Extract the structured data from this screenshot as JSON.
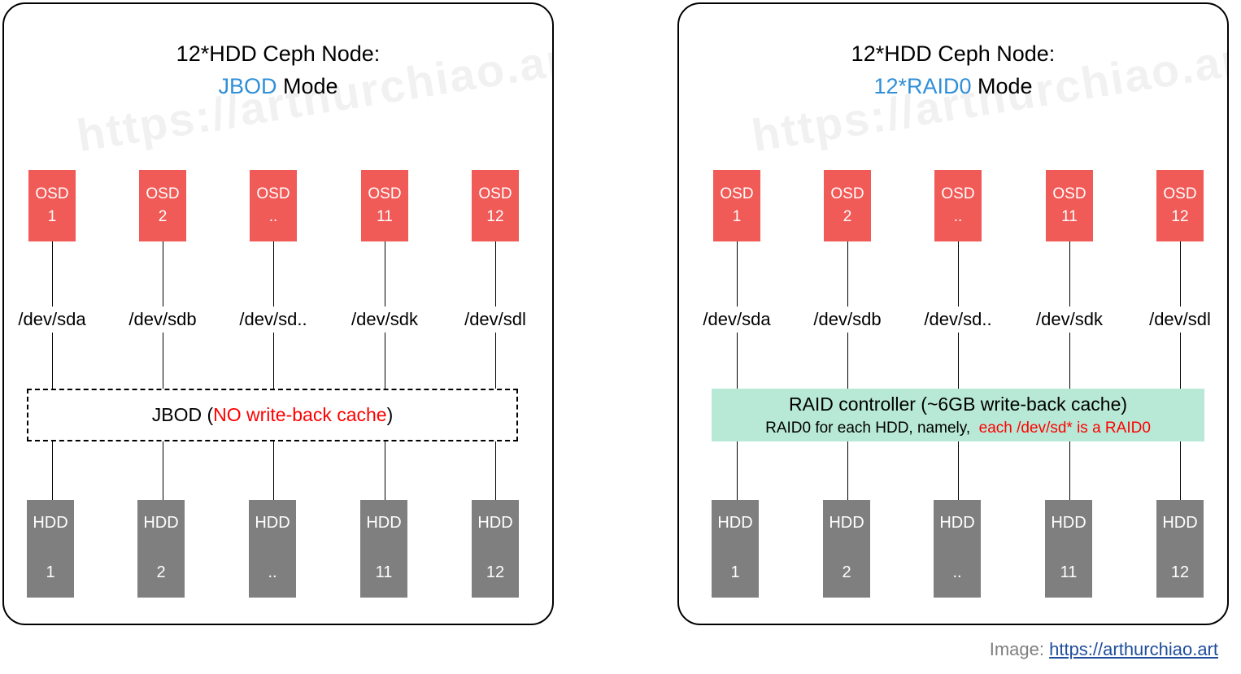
{
  "left": {
    "title_line1": "12*HDD Ceph Node:",
    "title_accent": "JBOD",
    "title_rest": " Mode",
    "watermark": "https://arthurchiao.art",
    "osds": [
      {
        "label": "OSD",
        "num": "1"
      },
      {
        "label": "OSD",
        "num": "2"
      },
      {
        "label": "OSD",
        "num": ".."
      },
      {
        "label": "OSD",
        "num": "11"
      },
      {
        "label": "OSD",
        "num": "12"
      }
    ],
    "devices": [
      "/dev/sda",
      "/dev/sdb",
      "/dev/sd..",
      "/dev/sdk",
      "/dev/sdl"
    ],
    "controller": {
      "prefix": "JBOD (",
      "highlight": "NO write-back cache",
      "suffix": ")"
    },
    "hdds": [
      {
        "label": "HDD",
        "num": "1"
      },
      {
        "label": "HDD",
        "num": "2"
      },
      {
        "label": "HDD",
        "num": ".."
      },
      {
        "label": "HDD",
        "num": "11"
      },
      {
        "label": "HDD",
        "num": "12"
      }
    ]
  },
  "right": {
    "title_line1": "12*HDD Ceph Node:",
    "title_accent": "12*RAID0",
    "title_rest": " Mode",
    "watermark": "https://arthurchiao.art",
    "osds": [
      {
        "label": "OSD",
        "num": "1"
      },
      {
        "label": "OSD",
        "num": "2"
      },
      {
        "label": "OSD",
        "num": ".."
      },
      {
        "label": "OSD",
        "num": "11"
      },
      {
        "label": "OSD",
        "num": "12"
      }
    ],
    "devices": [
      "/dev/sda",
      "/dev/sdb",
      "/dev/sd..",
      "/dev/sdk",
      "/dev/sdl"
    ],
    "controller": {
      "line1": "RAID controller (~6GB write-back cache)",
      "line2_prefix": "RAID0 for each HDD, namely,  ",
      "line2_highlight": "each /dev/sd* is a RAID0"
    },
    "hdds": [
      {
        "label": "HDD",
        "num": "1"
      },
      {
        "label": "HDD",
        "num": "2"
      },
      {
        "label": "HDD",
        "num": ".."
      },
      {
        "label": "HDD",
        "num": "11"
      },
      {
        "label": "HDD",
        "num": "12"
      }
    ]
  },
  "credit": {
    "label": "Image: ",
    "link": "https://arthurchiao.art"
  },
  "colors": {
    "accent": "#2f8fd8",
    "warning": "#ff0000",
    "osd": "#f05a57",
    "hdd": "#7f7f7f",
    "raid_controller": "#b8e8d6"
  }
}
